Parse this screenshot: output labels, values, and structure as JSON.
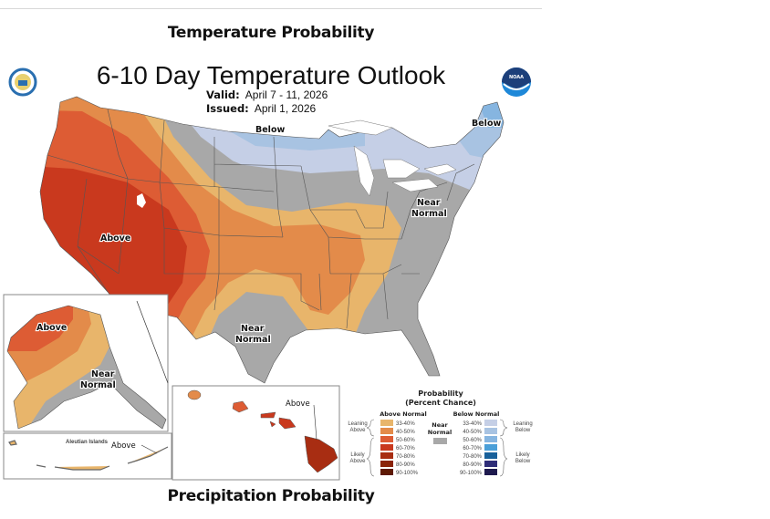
{
  "page": {
    "section_title_top": "Temperature Probability",
    "section_title_bottom": "Precipitation Probability"
  },
  "map": {
    "title": "6-10 Day Temperature Outlook",
    "valid_label": "Valid:",
    "valid_value": "April 7 - 11, 2026",
    "issued_label": "Issued:",
    "issued_value": "April 1, 2026",
    "logos": {
      "left": "doc-seal-icon",
      "right": "noaa-logo-icon"
    },
    "region_labels": {
      "west_above": "Above",
      "north_below": "Below",
      "northeast_below": "Below",
      "east_near": "Near",
      "east_normal": "Normal",
      "texas_near": "Near",
      "texas_normal": "Normal",
      "alaska_above": "Above",
      "alaska_near": "Near",
      "alaska_normal": "Normal",
      "aleutian_title": "Aleutian Islands",
      "aleutian_above": "Above",
      "hawaii_above": "Above"
    },
    "colors": {
      "above_33_40": "#e8b56b",
      "above_40_50": "#e38b4a",
      "above_50_60": "#dd5c34",
      "above_60_70": "#c9391e",
      "above_70_80": "#a82d12",
      "above_80_90": "#8a2308",
      "above_90_100": "#5e1a05",
      "near_normal": "#a8a8a8",
      "below_33_40": "#c5cfe6",
      "below_40_50": "#a8c3e2",
      "below_50_60": "#86b5e0",
      "below_60_70": "#4a9fd8",
      "below_70_80": "#18609a",
      "below_80_90": "#2f2d78",
      "below_90_100": "#1e1a4e"
    }
  },
  "legend": {
    "title_line1": "Probability",
    "title_line2": "(Percent Chance)",
    "above_header": "Above Normal",
    "below_header": "Below Normal",
    "near_line1": "Near",
    "near_line2": "Normal",
    "leaning_above_1": "Leaning",
    "leaning_above_2": "Above",
    "likely_above_1": "Likely",
    "likely_above_2": "Above",
    "leaning_below_1": "Leaning",
    "leaning_below_2": "Below",
    "likely_below_1": "Likely",
    "likely_below_2": "Below",
    "ranges": [
      "33-40%",
      "40-50%",
      "50-60%",
      "60-70%",
      "70-80%",
      "80-90%",
      "90-100%"
    ]
  }
}
